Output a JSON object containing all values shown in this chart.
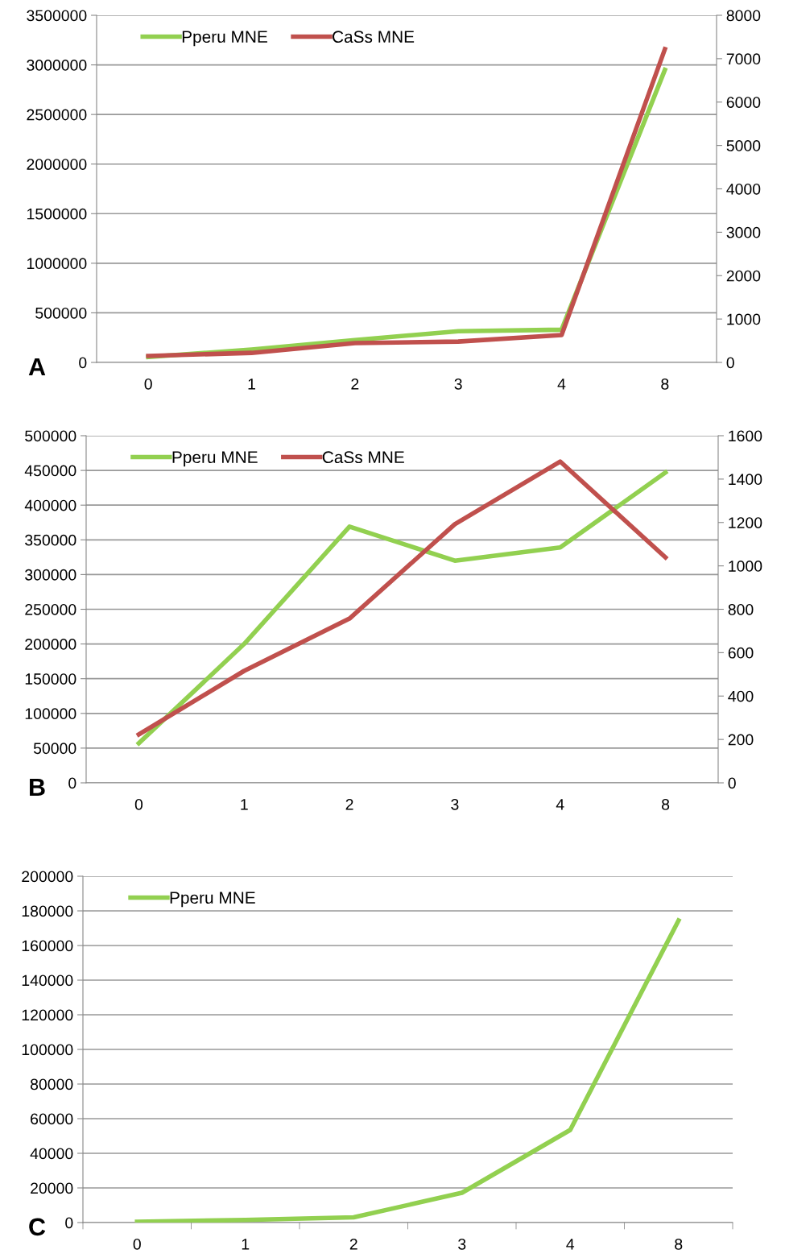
{
  "chart_data": [
    {
      "type": "line",
      "categories": [
        "0",
        "1",
        "2",
        "3",
        "4",
        "8"
      ],
      "ylim": [
        0,
        3500000
      ],
      "yticks": [
        0,
        500000,
        1000000,
        1500000,
        2000000,
        2500000,
        3000000,
        3500000
      ],
      "y2lim": [
        0,
        8000
      ],
      "y2ticks": [
        0,
        1000,
        2000,
        3000,
        4000,
        5000,
        6000,
        7000,
        8000
      ],
      "grid": "y",
      "legend": "top left",
      "marker": "none",
      "line_style": "solid",
      "annotations": [
        "A"
      ],
      "series": [
        {
          "name": "Pperu MNE",
          "color": "#92d050",
          "values": [
            55000,
            130000,
            225000,
            315000,
            330000,
            2950000
          ]
        },
        {
          "name": "CaSs MNE",
          "color": "#c0504d",
          "axis": "y2",
          "values": [
            150,
            220,
            445,
            480,
            630,
            7220
          ]
        }
      ]
    },
    {
      "type": "line",
      "categories": [
        "0",
        "1",
        "2",
        "3",
        "4",
        "8"
      ],
      "ylim": [
        0,
        500000
      ],
      "yticks": [
        0,
        50000,
        100000,
        150000,
        200000,
        250000,
        300000,
        350000,
        400000,
        450000,
        500000
      ],
      "y2lim": [
        0,
        1600
      ],
      "y2ticks": [
        0,
        200,
        400,
        600,
        800,
        1000,
        1200,
        1400,
        1600
      ],
      "grid": "y",
      "legend": "top left",
      "marker": "none",
      "line_style": "solid",
      "annotations": [
        "B"
      ],
      "series": [
        {
          "name": "Pperu MNE",
          "color": "#92d050",
          "values": [
            57000,
            200000,
            369000,
            320000,
            339000,
            447000
          ]
        },
        {
          "name": "CaSs MNE",
          "color": "#c0504d",
          "axis": "y2",
          "values": [
            223,
            516,
            757,
            1192,
            1481,
            1039
          ]
        }
      ]
    },
    {
      "type": "line",
      "categories": [
        "0",
        "1",
        "2",
        "3",
        "4",
        "8"
      ],
      "ylim": [
        0,
        200000
      ],
      "yticks": [
        0,
        20000,
        40000,
        60000,
        80000,
        100000,
        120000,
        140000,
        160000,
        180000,
        200000
      ],
      "grid": "y",
      "legend": "top left",
      "marker": "none",
      "line_style": "solid",
      "annotations": [
        "C"
      ],
      "series": [
        {
          "name": "Pperu MNE",
          "color": "#92d050",
          "values": [
            500,
            1500,
            3000,
            17200,
            53500,
            174400
          ]
        }
      ]
    }
  ]
}
